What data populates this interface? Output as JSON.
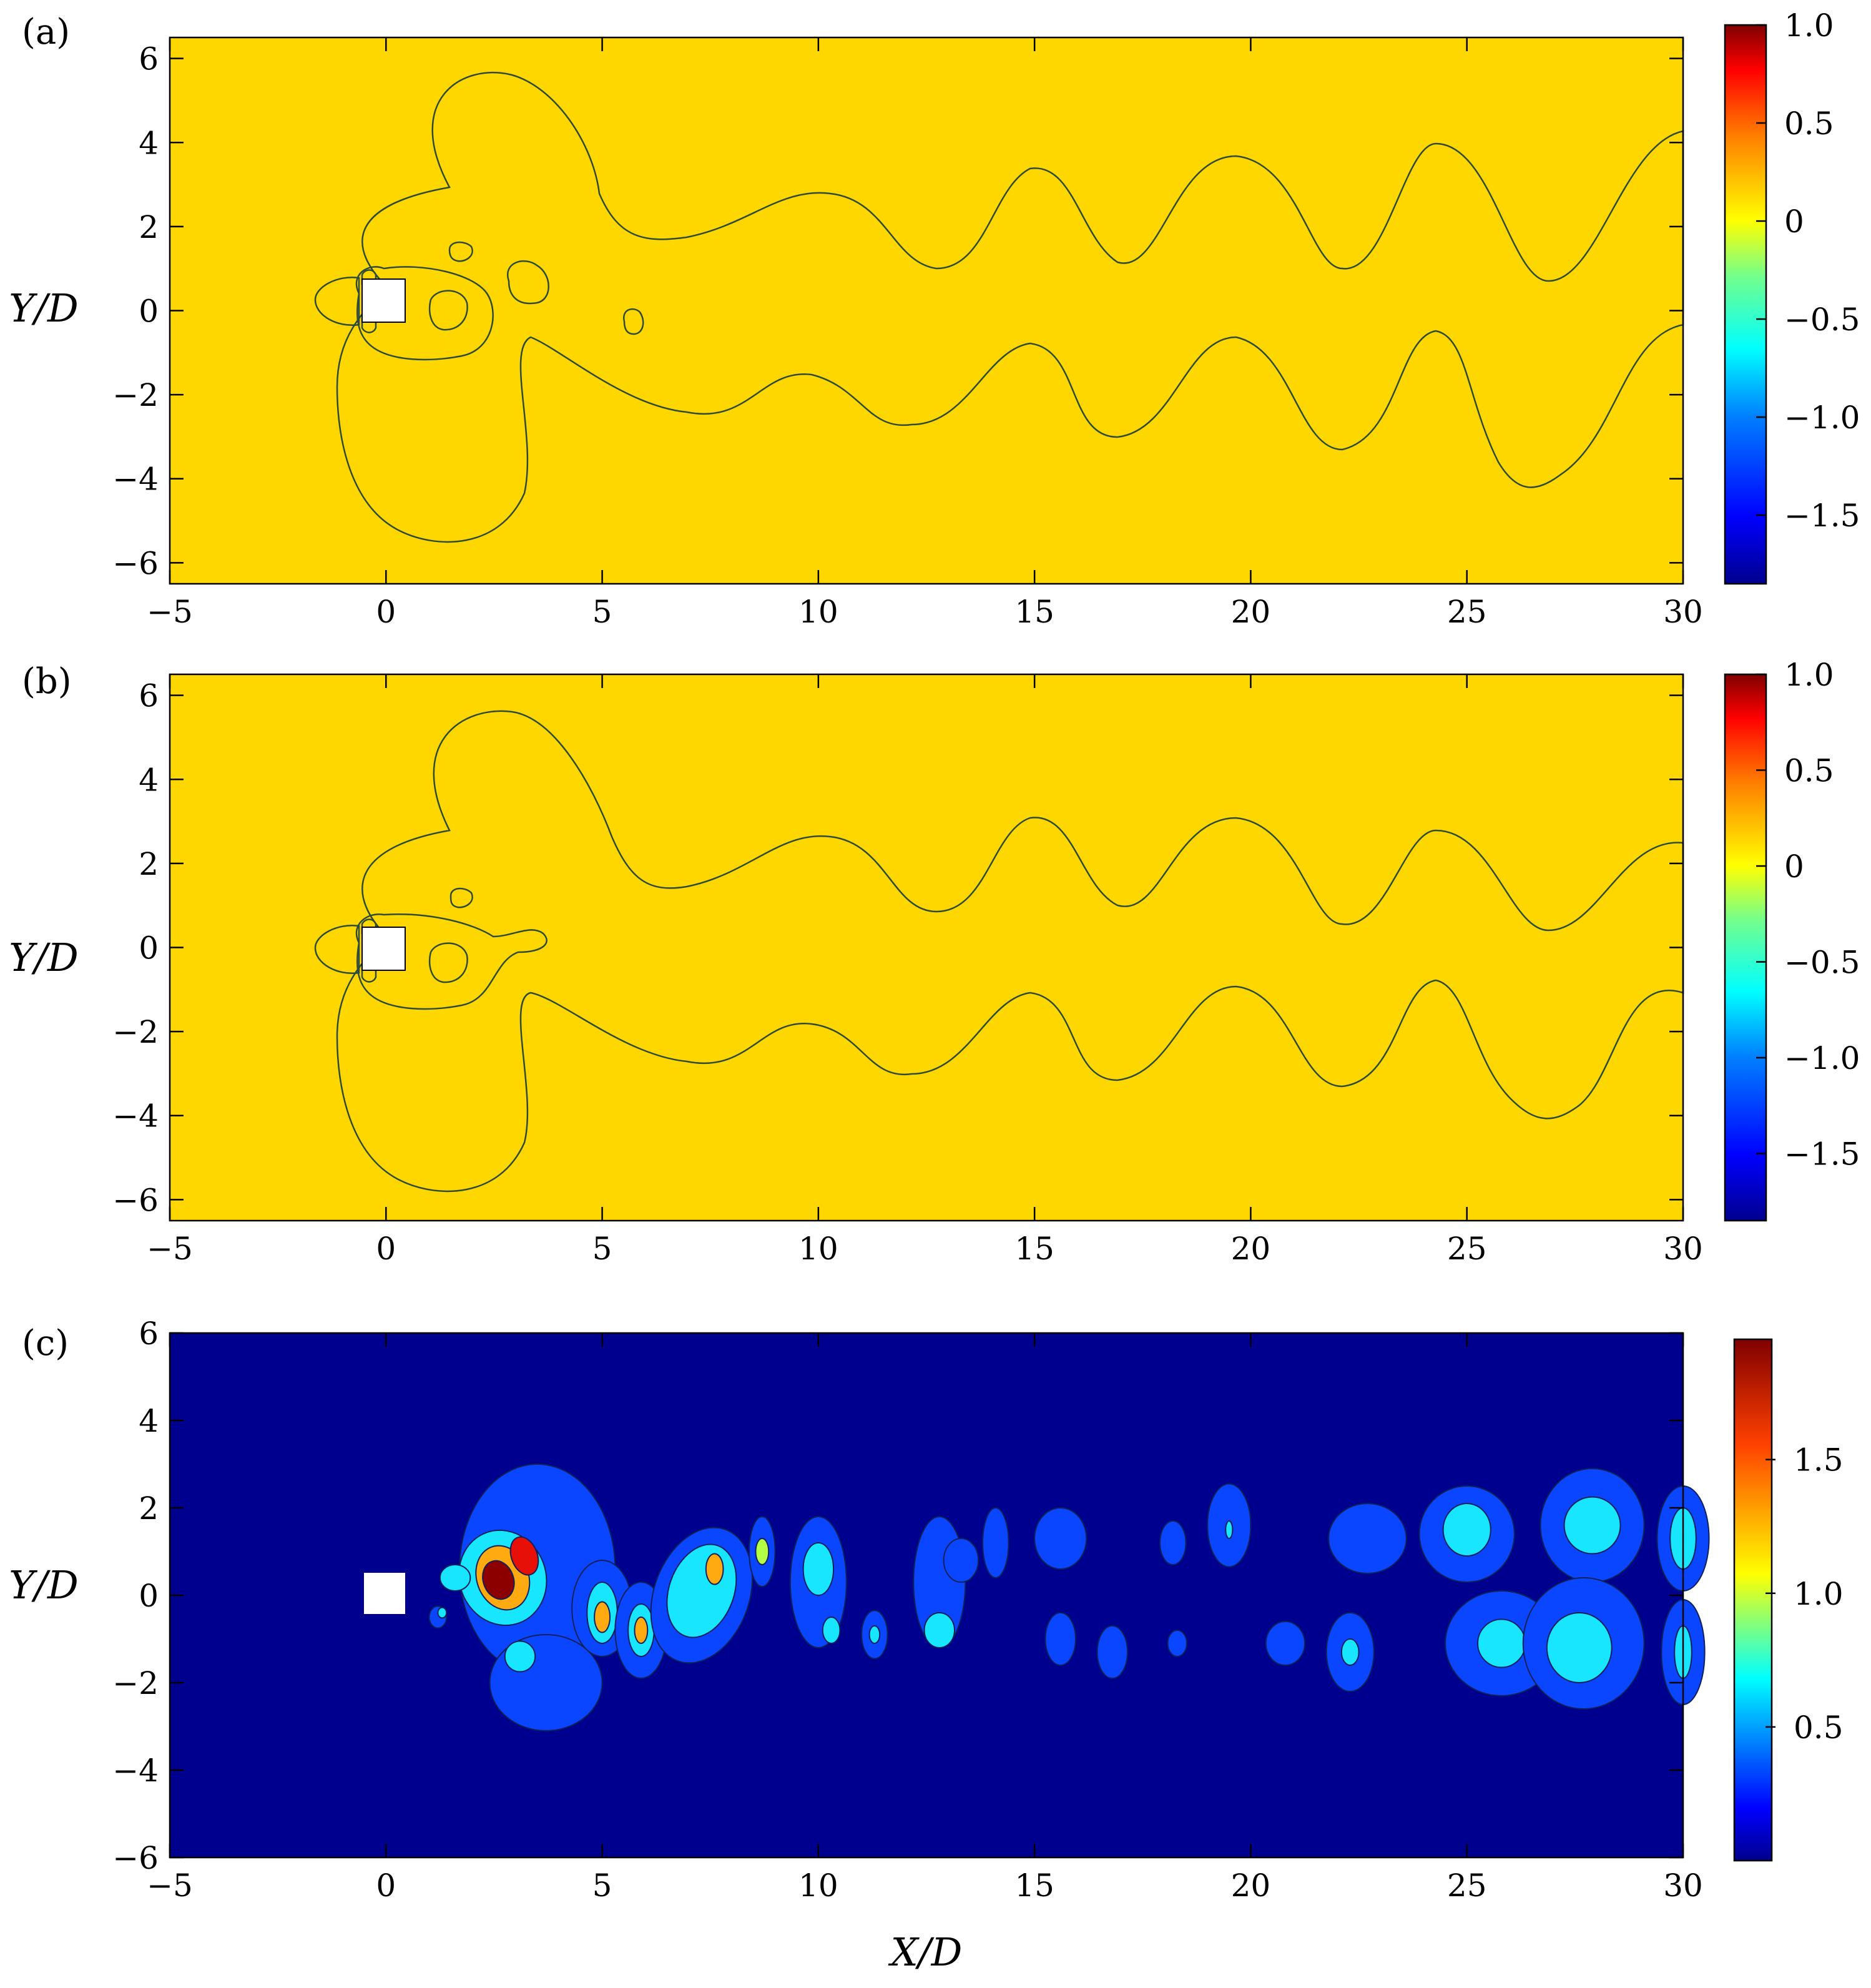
{
  "colors": {
    "yellow_level": "#FFD700",
    "green_level": "#73FF8C",
    "light_blue_level": "#1EB4FF",
    "blue_level": "#0A3CF0",
    "red_level": "#E6200A",
    "dark_navy_bg": "#00008F",
    "blue_c1": "#0A46FF",
    "cyan_c2": "#18E6FF",
    "yellowgreen_c3": "#B4FF46",
    "orange_c4": "#FFAA10",
    "red_c5": "#E61008",
    "darkred_c6": "#8C0000"
  },
  "chart_data": [
    {
      "type": "heatmap",
      "panel_label": "(a)",
      "ylabel": "Y/D",
      "xlim": [
        -5,
        30
      ],
      "ylim": [
        -6.5,
        6.5
      ],
      "x_ticks": [
        "−5",
        "0",
        "5",
        "10",
        "15",
        "20",
        "25",
        "30"
      ],
      "y_ticks": [
        "6",
        "4",
        "2",
        "0",
        "−2",
        "−4",
        "−6"
      ],
      "colorbar_ticks": [
        "1.0",
        "0.5",
        "0",
        "−0.5",
        "−1.0",
        "−1.5"
      ],
      "colorbar_range": [
        -1.85,
        1.0
      ]
    },
    {
      "type": "heatmap",
      "panel_label": "(b)",
      "ylabel": "Y/D",
      "xlim": [
        -5,
        30
      ],
      "ylim": [
        -6.5,
        6.5
      ],
      "x_ticks": [
        "−5",
        "0",
        "5",
        "10",
        "15",
        "20",
        "25",
        "30"
      ],
      "y_ticks": [
        "6",
        "4",
        "2",
        "0",
        "−2",
        "−4",
        "−6"
      ],
      "colorbar_ticks": [
        "1.0",
        "0.5",
        "0",
        "−0.5",
        "−1.0",
        "−1.5"
      ],
      "colorbar_range": [
        -1.85,
        1.0
      ]
    },
    {
      "type": "heatmap",
      "panel_label": "(c)",
      "ylabel": "Y/D",
      "xlabel": "X/D",
      "xlim": [
        -5,
        30
      ],
      "ylim": [
        -6,
        6
      ],
      "x_ticks": [
        "−5",
        "0",
        "5",
        "10",
        "15",
        "20",
        "25",
        "30"
      ],
      "y_ticks": [
        "6",
        "4",
        "2",
        "0",
        "−2",
        "−4",
        "−6"
      ],
      "colorbar_ticks": [
        "1.5",
        "1.0",
        "0.5"
      ],
      "colorbar_range": [
        0,
        1.95
      ]
    }
  ]
}
